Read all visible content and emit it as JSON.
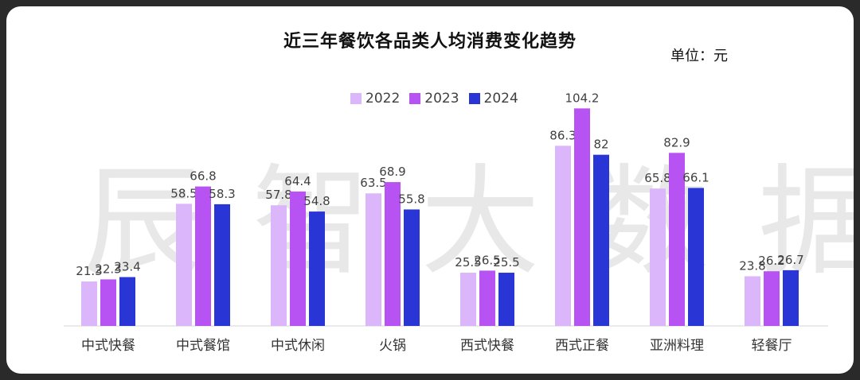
{
  "chart_data": {
    "type": "bar",
    "title": "近三年餐饮各品类人均消费变化趋势",
    "unit_label": "单位：元",
    "watermark": "辰智大数据",
    "categories": [
      "中式快餐",
      "中式餐馆",
      "中式休闲",
      "火锅",
      "西式快餐",
      "西式正餐",
      "亚洲料理",
      "轻餐厅"
    ],
    "series": [
      {
        "name": "2022",
        "color": "#dbb6fb",
        "values": [
          21.3,
          58.5,
          57.8,
          63.5,
          25.5,
          86.3,
          65.8,
          23.8
        ]
      },
      {
        "name": "2023",
        "color": "#b653f2",
        "values": [
          22.3,
          66.8,
          64.4,
          68.9,
          26.5,
          104.2,
          82.9,
          26.2
        ]
      },
      {
        "name": "2024",
        "color": "#2a35d6",
        "values": [
          23.4,
          58.3,
          54.8,
          55.8,
          25.5,
          82,
          66.1,
          26.7
        ]
      }
    ],
    "value_labels": [
      [
        "21.3",
        "58.5",
        "57.8",
        "63.5",
        "25.5",
        "86.3",
        "65.8",
        "23.8"
      ],
      [
        "22.3",
        "66.8",
        "64.4",
        "68.9",
        "26.5",
        "104.2",
        "82.9",
        "26.2"
      ],
      [
        "23.4",
        "58.3",
        "54.8",
        "55.8",
        "25.5",
        "82",
        "66.1",
        "26.7"
      ]
    ],
    "ylim": [
      0,
      115
    ],
    "grid": false,
    "legend_position": "top-center"
  }
}
